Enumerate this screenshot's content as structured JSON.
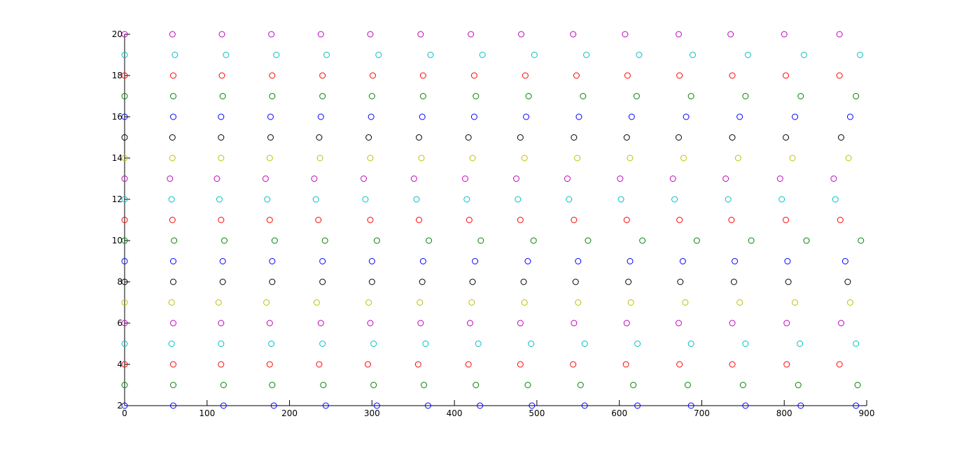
{
  "chart_data": {
    "type": "scatter",
    "title": "",
    "xlabel": "",
    "ylabel": "",
    "xlim": [
      0,
      900
    ],
    "ylim": [
      2,
      20
    ],
    "grid": false,
    "legend": "none",
    "marker": "circle-open",
    "x_ticks": [
      0,
      100,
      200,
      300,
      400,
      500,
      600,
      700,
      800,
      900
    ],
    "x_tick_labels": [
      "0",
      "100",
      "200",
      "300",
      "400",
      "500",
      "600",
      "700",
      "800",
      "900"
    ],
    "y_ticks": [
      2,
      4,
      6,
      8,
      10,
      12,
      14,
      16,
      18,
      20
    ],
    "y_tick_labels": [
      "2",
      "4",
      "6",
      "8",
      "10",
      "12",
      "14",
      "16",
      "18",
      "20"
    ],
    "series": [
      {
        "y": 2,
        "color": "#0000ff",
        "x": [
          0,
          59,
          120,
          181,
          244,
          306,
          368,
          431,
          494,
          558,
          622,
          687,
          753,
          820,
          887
        ]
      },
      {
        "y": 3,
        "color": "#008000",
        "x": [
          0,
          59,
          120,
          179,
          241,
          302,
          363,
          426,
          489,
          553,
          617,
          683,
          750,
          817,
          889
        ]
      },
      {
        "y": 4,
        "color": "#ff0000",
        "x": [
          0,
          59,
          117,
          176,
          236,
          295,
          356,
          417,
          480,
          544,
          608,
          673,
          737,
          803,
          867
        ]
      },
      {
        "y": 5,
        "color": "#00bfbf",
        "x": [
          0,
          57,
          117,
          178,
          240,
          302,
          365,
          429,
          493,
          558,
          622,
          687,
          753,
          819,
          887
        ]
      },
      {
        "y": 6,
        "color": "#bf00bf",
        "x": [
          0,
          59,
          117,
          176,
          238,
          298,
          359,
          419,
          480,
          545,
          609,
          672,
          737,
          803,
          869
        ]
      },
      {
        "y": 7,
        "color": "#bfbf00",
        "x": [
          0,
          57,
          114,
          172,
          233,
          296,
          358,
          421,
          485,
          550,
          614,
          680,
          746,
          813,
          880
        ]
      },
      {
        "y": 8,
        "color": "#000000",
        "x": [
          0,
          59,
          119,
          179,
          240,
          300,
          361,
          422,
          484,
          547,
          611,
          674,
          739,
          805,
          877
        ]
      },
      {
        "y": 9,
        "color": "#0000ff",
        "x": [
          0,
          59,
          119,
          179,
          240,
          300,
          362,
          425,
          489,
          550,
          613,
          677,
          740,
          804,
          874
        ]
      },
      {
        "y": 10,
        "color": "#008000",
        "x": [
          0,
          60,
          121,
          182,
          243,
          306,
          369,
          432,
          496,
          562,
          628,
          694,
          760,
          827,
          893
        ]
      },
      {
        "y": 11,
        "color": "#ff0000",
        "x": [
          0,
          58,
          117,
          176,
          235,
          298,
          357,
          418,
          480,
          545,
          609,
          673,
          736,
          802,
          868
        ]
      },
      {
        "y": 12,
        "color": "#00bfbf",
        "x": [
          0,
          57,
          115,
          173,
          232,
          292,
          354,
          415,
          477,
          539,
          602,
          667,
          732,
          797,
          862
        ]
      },
      {
        "y": 13,
        "color": "#bf00bf",
        "x": [
          0,
          55,
          112,
          171,
          230,
          290,
          351,
          413,
          475,
          537,
          601,
          665,
          729,
          795,
          860
        ]
      },
      {
        "y": 14,
        "color": "#bfbf00",
        "x": [
          0,
          58,
          117,
          176,
          237,
          298,
          360,
          422,
          485,
          549,
          613,
          678,
          744,
          810,
          878
        ]
      },
      {
        "y": 15,
        "color": "#000000",
        "x": [
          0,
          58,
          117,
          177,
          236,
          296,
          357,
          417,
          480,
          545,
          609,
          672,
          737,
          802,
          869
        ]
      },
      {
        "y": 16,
        "color": "#0000ff",
        "x": [
          0,
          59,
          117,
          177,
          238,
          299,
          361,
          424,
          487,
          551,
          615,
          681,
          746,
          813,
          880
        ]
      },
      {
        "y": 17,
        "color": "#008000",
        "x": [
          0,
          59,
          119,
          179,
          240,
          300,
          362,
          426,
          490,
          556,
          621,
          687,
          753,
          820,
          887
        ]
      },
      {
        "y": 18,
        "color": "#ff0000",
        "x": [
          0,
          59,
          118,
          179,
          240,
          301,
          362,
          424,
          486,
          548,
          610,
          673,
          737,
          802,
          867
        ]
      },
      {
        "y": 19,
        "color": "#00bfbf",
        "x": [
          0,
          61,
          123,
          184,
          245,
          308,
          371,
          434,
          497,
          560,
          624,
          689,
          756,
          824,
          892
        ]
      },
      {
        "y": 20,
        "color": "#bf00bf",
        "x": [
          0,
          58,
          118,
          178,
          238,
          298,
          359,
          420,
          481,
          544,
          607,
          672,
          735,
          800,
          867
        ]
      }
    ]
  }
}
